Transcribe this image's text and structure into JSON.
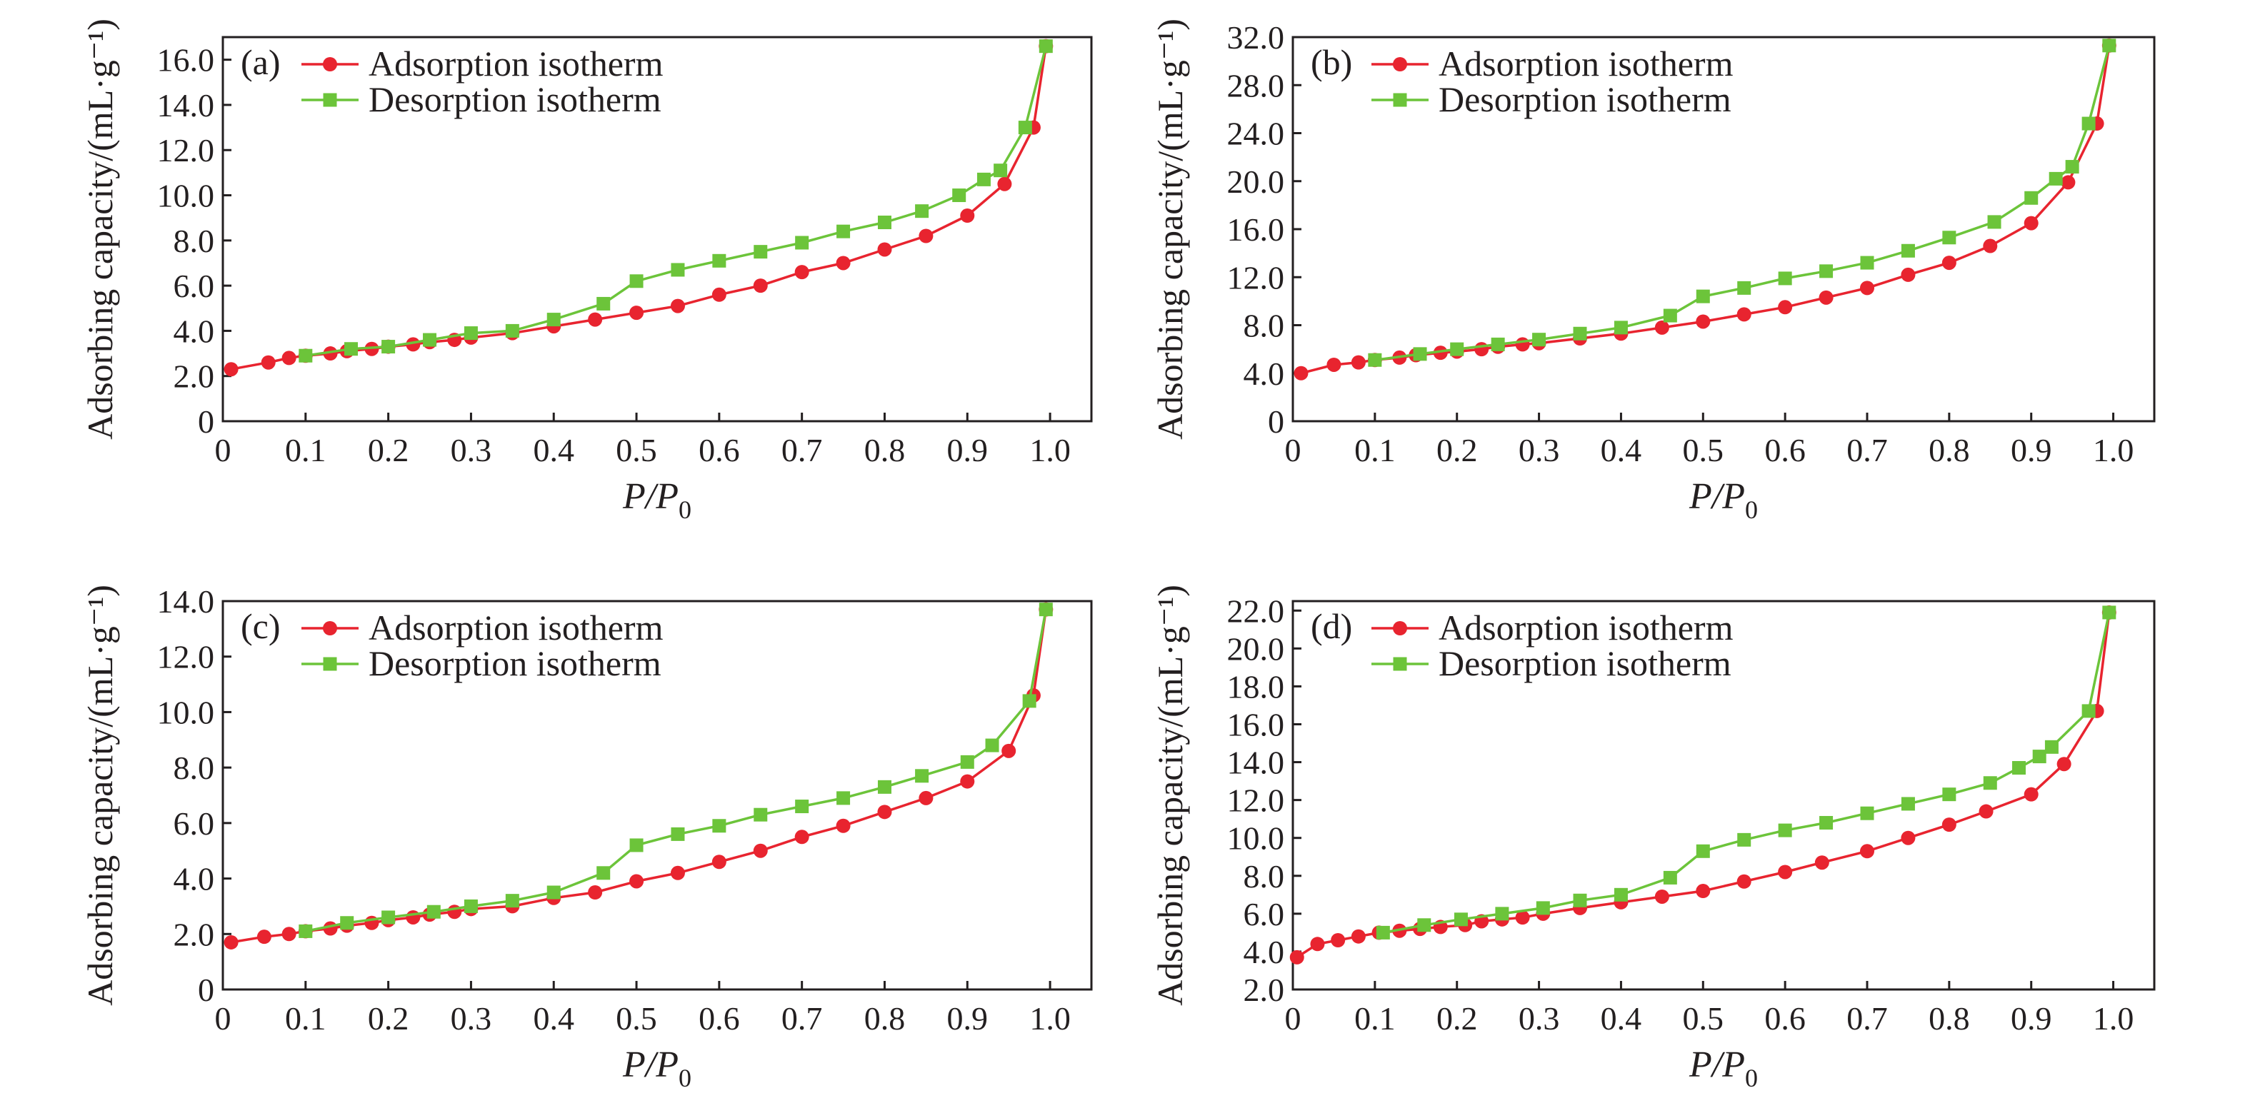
{
  "colors": {
    "adsorption": "#e8242f",
    "desorption": "#6cc43a",
    "axis": "#231f20"
  },
  "chart_data": [
    {
      "type": "line",
      "panel_label": "(a)",
      "xlabel_main": "P/P",
      "xlabel_sub": "0",
      "ylabel": "Adsorbing capacity/(mL·g⁻¹)",
      "xlim": [
        0,
        1.05
      ],
      "ylim": [
        0,
        17
      ],
      "x_ticks": [
        "0",
        "0.1",
        "0.2",
        "0.3",
        "0.4",
        "0.5",
        "0.6",
        "0.7",
        "0.8",
        "0.9",
        "1.0"
      ],
      "y_ticks": [
        {
          "v": 0,
          "label": "0"
        },
        {
          "v": 2,
          "label": "2.0"
        },
        {
          "v": 4,
          "label": "4.0"
        },
        {
          "v": 6,
          "label": "6.0"
        },
        {
          "v": 8,
          "label": "8.0"
        },
        {
          "v": 10,
          "label": "10.0"
        },
        {
          "v": 12,
          "label": "12.0"
        },
        {
          "v": 14,
          "label": "14.0"
        },
        {
          "v": 16,
          "label": "16.0"
        }
      ],
      "series": [
        {
          "name": "Adsorption isotherm",
          "marker": "circle",
          "x": [
            0.01,
            0.055,
            0.08,
            0.1,
            0.13,
            0.15,
            0.18,
            0.2,
            0.23,
            0.25,
            0.28,
            0.3,
            0.35,
            0.4,
            0.45,
            0.5,
            0.55,
            0.6,
            0.65,
            0.7,
            0.75,
            0.8,
            0.85,
            0.9,
            0.945,
            0.98,
            0.995
          ],
          "y": [
            2.3,
            2.6,
            2.8,
            2.9,
            3.0,
            3.1,
            3.2,
            3.3,
            3.4,
            3.5,
            3.6,
            3.7,
            3.9,
            4.2,
            4.5,
            4.8,
            5.1,
            5.6,
            6.0,
            6.6,
            7.0,
            7.6,
            8.2,
            9.1,
            10.5,
            13.0,
            16.6
          ]
        },
        {
          "name": "Desorption isotherm",
          "marker": "square",
          "x": [
            0.995,
            0.97,
            0.94,
            0.92,
            0.89,
            0.845,
            0.8,
            0.75,
            0.7,
            0.65,
            0.6,
            0.55,
            0.5,
            0.46,
            0.4,
            0.35,
            0.3,
            0.25,
            0.2,
            0.155,
            0.1
          ],
          "y": [
            16.6,
            13.0,
            11.1,
            10.7,
            10.0,
            9.3,
            8.8,
            8.4,
            7.9,
            7.5,
            7.1,
            6.7,
            6.2,
            5.2,
            4.5,
            4.0,
            3.9,
            3.6,
            3.3,
            3.2,
            2.9
          ]
        }
      ]
    },
    {
      "type": "line",
      "panel_label": "(b)",
      "xlabel_main": "P/P",
      "xlabel_sub": "0",
      "ylabel": "Adsorbing capacity/(mL·g⁻¹)",
      "xlim": [
        0,
        1.05
      ],
      "ylim": [
        0,
        32
      ],
      "x_ticks": [
        "0",
        "0.1",
        "0.2",
        "0.3",
        "0.4",
        "0.5",
        "0.6",
        "0.7",
        "0.8",
        "0.9",
        "1.0"
      ],
      "y_ticks": [
        {
          "v": 0,
          "label": "0"
        },
        {
          "v": 4,
          "label": "4.0"
        },
        {
          "v": 8,
          "label": "8.0"
        },
        {
          "v": 12,
          "label": "12.0"
        },
        {
          "v": 16,
          "label": "16.0"
        },
        {
          "v": 20,
          "label": "20.0"
        },
        {
          "v": 24,
          "label": "24.0"
        },
        {
          "v": 28,
          "label": "28.0"
        },
        {
          "v": 32,
          "label": "32.0"
        }
      ],
      "series": [
        {
          "name": "Adsorption isotherm",
          "marker": "circle",
          "x": [
            0.01,
            0.05,
            0.08,
            0.1,
            0.13,
            0.15,
            0.18,
            0.2,
            0.23,
            0.25,
            0.28,
            0.3,
            0.35,
            0.4,
            0.45,
            0.5,
            0.55,
            0.6,
            0.65,
            0.7,
            0.75,
            0.8,
            0.85,
            0.9,
            0.945,
            0.98,
            0.995
          ],
          "y": [
            4.0,
            4.7,
            4.9,
            5.1,
            5.3,
            5.5,
            5.7,
            5.8,
            6.0,
            6.2,
            6.4,
            6.5,
            6.9,
            7.3,
            7.8,
            8.3,
            8.9,
            9.5,
            10.3,
            11.1,
            12.2,
            13.2,
            14.6,
            16.5,
            19.9,
            24.8,
            31.3
          ]
        },
        {
          "name": "Desorption isotherm",
          "marker": "square",
          "x": [
            0.995,
            0.97,
            0.95,
            0.93,
            0.9,
            0.855,
            0.8,
            0.75,
            0.7,
            0.65,
            0.6,
            0.55,
            0.5,
            0.46,
            0.4,
            0.35,
            0.3,
            0.25,
            0.2,
            0.155,
            0.1
          ],
          "y": [
            31.3,
            24.8,
            21.2,
            20.2,
            18.6,
            16.6,
            15.3,
            14.2,
            13.2,
            12.5,
            11.9,
            11.1,
            10.4,
            8.8,
            7.8,
            7.3,
            6.8,
            6.4,
            6.0,
            5.6,
            5.1
          ]
        }
      ]
    },
    {
      "type": "line",
      "panel_label": "(c)",
      "xlabel_main": "P/P",
      "xlabel_sub": "0",
      "ylabel": "Adsorbing capacity/(mL·g⁻¹)",
      "xlim": [
        0,
        1.05
      ],
      "ylim": [
        0,
        14
      ],
      "x_ticks": [
        "0",
        "0.1",
        "0.2",
        "0.3",
        "0.4",
        "0.5",
        "0.6",
        "0.7",
        "0.8",
        "0.9",
        "1.0"
      ],
      "y_ticks": [
        {
          "v": 0,
          "label": "0"
        },
        {
          "v": 2,
          "label": "2.0"
        },
        {
          "v": 4,
          "label": "4.0"
        },
        {
          "v": 6,
          "label": "6.0"
        },
        {
          "v": 8,
          "label": "8.0"
        },
        {
          "v": 10,
          "label": "10.0"
        },
        {
          "v": 12,
          "label": "12.0"
        },
        {
          "v": 14,
          "label": "14.0"
        }
      ],
      "series": [
        {
          "name": "Adsorption isotherm",
          "marker": "circle",
          "x": [
            0.01,
            0.05,
            0.08,
            0.1,
            0.13,
            0.15,
            0.18,
            0.2,
            0.23,
            0.25,
            0.28,
            0.3,
            0.35,
            0.4,
            0.45,
            0.5,
            0.55,
            0.6,
            0.65,
            0.7,
            0.75,
            0.8,
            0.85,
            0.9,
            0.95,
            0.98,
            0.995
          ],
          "y": [
            1.7,
            1.9,
            2.0,
            2.1,
            2.2,
            2.3,
            2.4,
            2.5,
            2.6,
            2.7,
            2.8,
            2.9,
            3.0,
            3.3,
            3.5,
            3.9,
            4.2,
            4.6,
            5.0,
            5.5,
            5.9,
            6.4,
            6.9,
            7.5,
            8.6,
            10.6,
            13.7
          ]
        },
        {
          "name": "Desorption isotherm",
          "marker": "square",
          "x": [
            0.995,
            0.975,
            0.93,
            0.9,
            0.845,
            0.8,
            0.75,
            0.7,
            0.65,
            0.6,
            0.55,
            0.5,
            0.46,
            0.4,
            0.35,
            0.3,
            0.255,
            0.2,
            0.15,
            0.1
          ],
          "y": [
            13.7,
            10.4,
            8.8,
            8.2,
            7.7,
            7.3,
            6.9,
            6.6,
            6.3,
            5.9,
            5.6,
            5.2,
            4.2,
            3.5,
            3.2,
            3.0,
            2.8,
            2.6,
            2.4,
            2.1
          ]
        }
      ]
    },
    {
      "type": "line",
      "panel_label": "(d)",
      "xlabel_main": "P/P",
      "xlabel_sub": "0",
      "ylabel": "Adsorbing capacity/(mL·g⁻¹)",
      "xlim": [
        0,
        1.05
      ],
      "ylim": [
        2,
        22.5
      ],
      "x_ticks": [
        "0",
        "0.1",
        "0.2",
        "0.3",
        "0.4",
        "0.5",
        "0.6",
        "0.7",
        "0.8",
        "0.9",
        "1.0"
      ],
      "y_ticks": [
        {
          "v": 2,
          "label": "2.0"
        },
        {
          "v": 4,
          "label": "4.0"
        },
        {
          "v": 6,
          "label": "6.0"
        },
        {
          "v": 8,
          "label": "8.0"
        },
        {
          "v": 10,
          "label": "10.0"
        },
        {
          "v": 12,
          "label": "12.0"
        },
        {
          "v": 14,
          "label": "14.0"
        },
        {
          "v": 16,
          "label": "16.0"
        },
        {
          "v": 18,
          "label": "18.0"
        },
        {
          "v": 20,
          "label": "20.0"
        },
        {
          "v": 22,
          "label": "22.0"
        }
      ],
      "series": [
        {
          "name": "Adsorption isotherm",
          "marker": "circle",
          "x": [
            0.005,
            0.03,
            0.055,
            0.08,
            0.105,
            0.13,
            0.155,
            0.18,
            0.21,
            0.23,
            0.255,
            0.28,
            0.305,
            0.35,
            0.4,
            0.45,
            0.5,
            0.55,
            0.6,
            0.645,
            0.7,
            0.75,
            0.8,
            0.845,
            0.9,
            0.94,
            0.98,
            0.995
          ],
          "y": [
            3.7,
            4.4,
            4.6,
            4.8,
            5.0,
            5.1,
            5.2,
            5.3,
            5.4,
            5.6,
            5.7,
            5.8,
            6.0,
            6.3,
            6.6,
            6.9,
            7.2,
            7.7,
            8.2,
            8.7,
            9.3,
            10.0,
            10.7,
            11.4,
            12.3,
            13.9,
            16.7,
            21.9
          ]
        },
        {
          "name": "Desorption isotherm",
          "marker": "square",
          "x": [
            0.995,
            0.97,
            0.925,
            0.91,
            0.885,
            0.85,
            0.8,
            0.75,
            0.7,
            0.65,
            0.6,
            0.55,
            0.5,
            0.46,
            0.4,
            0.35,
            0.305,
            0.255,
            0.205,
            0.16,
            0.11
          ],
          "y": [
            21.9,
            16.7,
            14.8,
            14.3,
            13.7,
            12.9,
            12.3,
            11.8,
            11.3,
            10.8,
            10.4,
            9.9,
            9.3,
            7.9,
            7.0,
            6.7,
            6.3,
            6.0,
            5.7,
            5.4,
            5.0
          ]
        }
      ]
    }
  ]
}
